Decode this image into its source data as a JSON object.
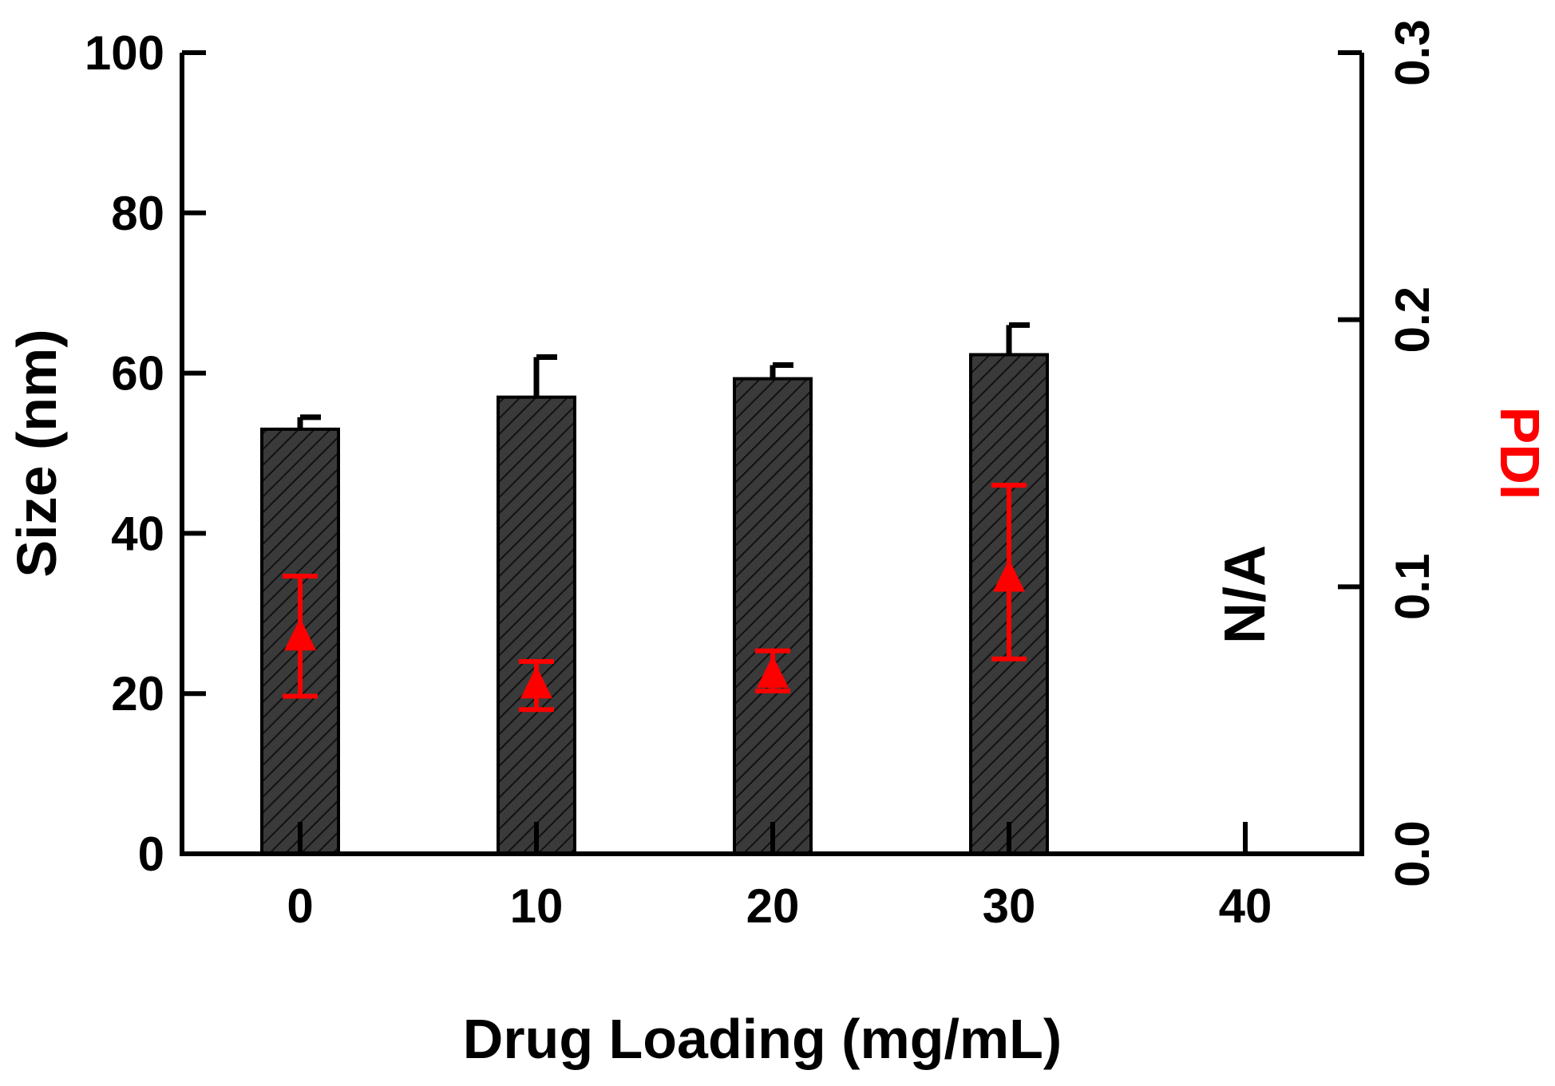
{
  "chart_data": {
    "type": "bar",
    "title": "",
    "x": {
      "label": "Drug Loading (mg/mL)",
      "categories": [
        "0",
        "10",
        "20",
        "30",
        "40"
      ],
      "values": [
        0,
        10,
        20,
        30,
        40
      ]
    },
    "y_left": {
      "label": "Size (nm)",
      "ylim": [
        0,
        100
      ],
      "ticks": [
        "0",
        "20",
        "40",
        "60",
        "80",
        "100"
      ]
    },
    "y_right": {
      "label": "PDI",
      "ylim": [
        0.0,
        0.3
      ],
      "ticks": [
        "0.0",
        "0.1",
        "0.2",
        "0.3"
      ]
    },
    "series": [
      {
        "name": "Size",
        "type": "bar",
        "axis": "left",
        "values": [
          53,
          57,
          59.3,
          62.3,
          null
        ],
        "error_plus": [
          1.5,
          5,
          1.7,
          3.7,
          null
        ]
      },
      {
        "name": "PDI",
        "type": "scatter",
        "axis": "right",
        "values": [
          0.081,
          0.063,
          0.067,
          0.103,
          null
        ],
        "err_low": [
          0.059,
          0.054,
          0.061,
          0.073,
          null
        ],
        "err_high": [
          0.104,
          0.072,
          0.076,
          0.138,
          null
        ]
      }
    ],
    "annotations": [
      {
        "text": "N/A",
        "x": 40
      }
    ],
    "colors": {
      "bar_fill": "#333333",
      "bar_hatch": "#111111",
      "axis": "#000000",
      "pdi": "#ff0000"
    },
    "grid": false,
    "legend": "none"
  }
}
